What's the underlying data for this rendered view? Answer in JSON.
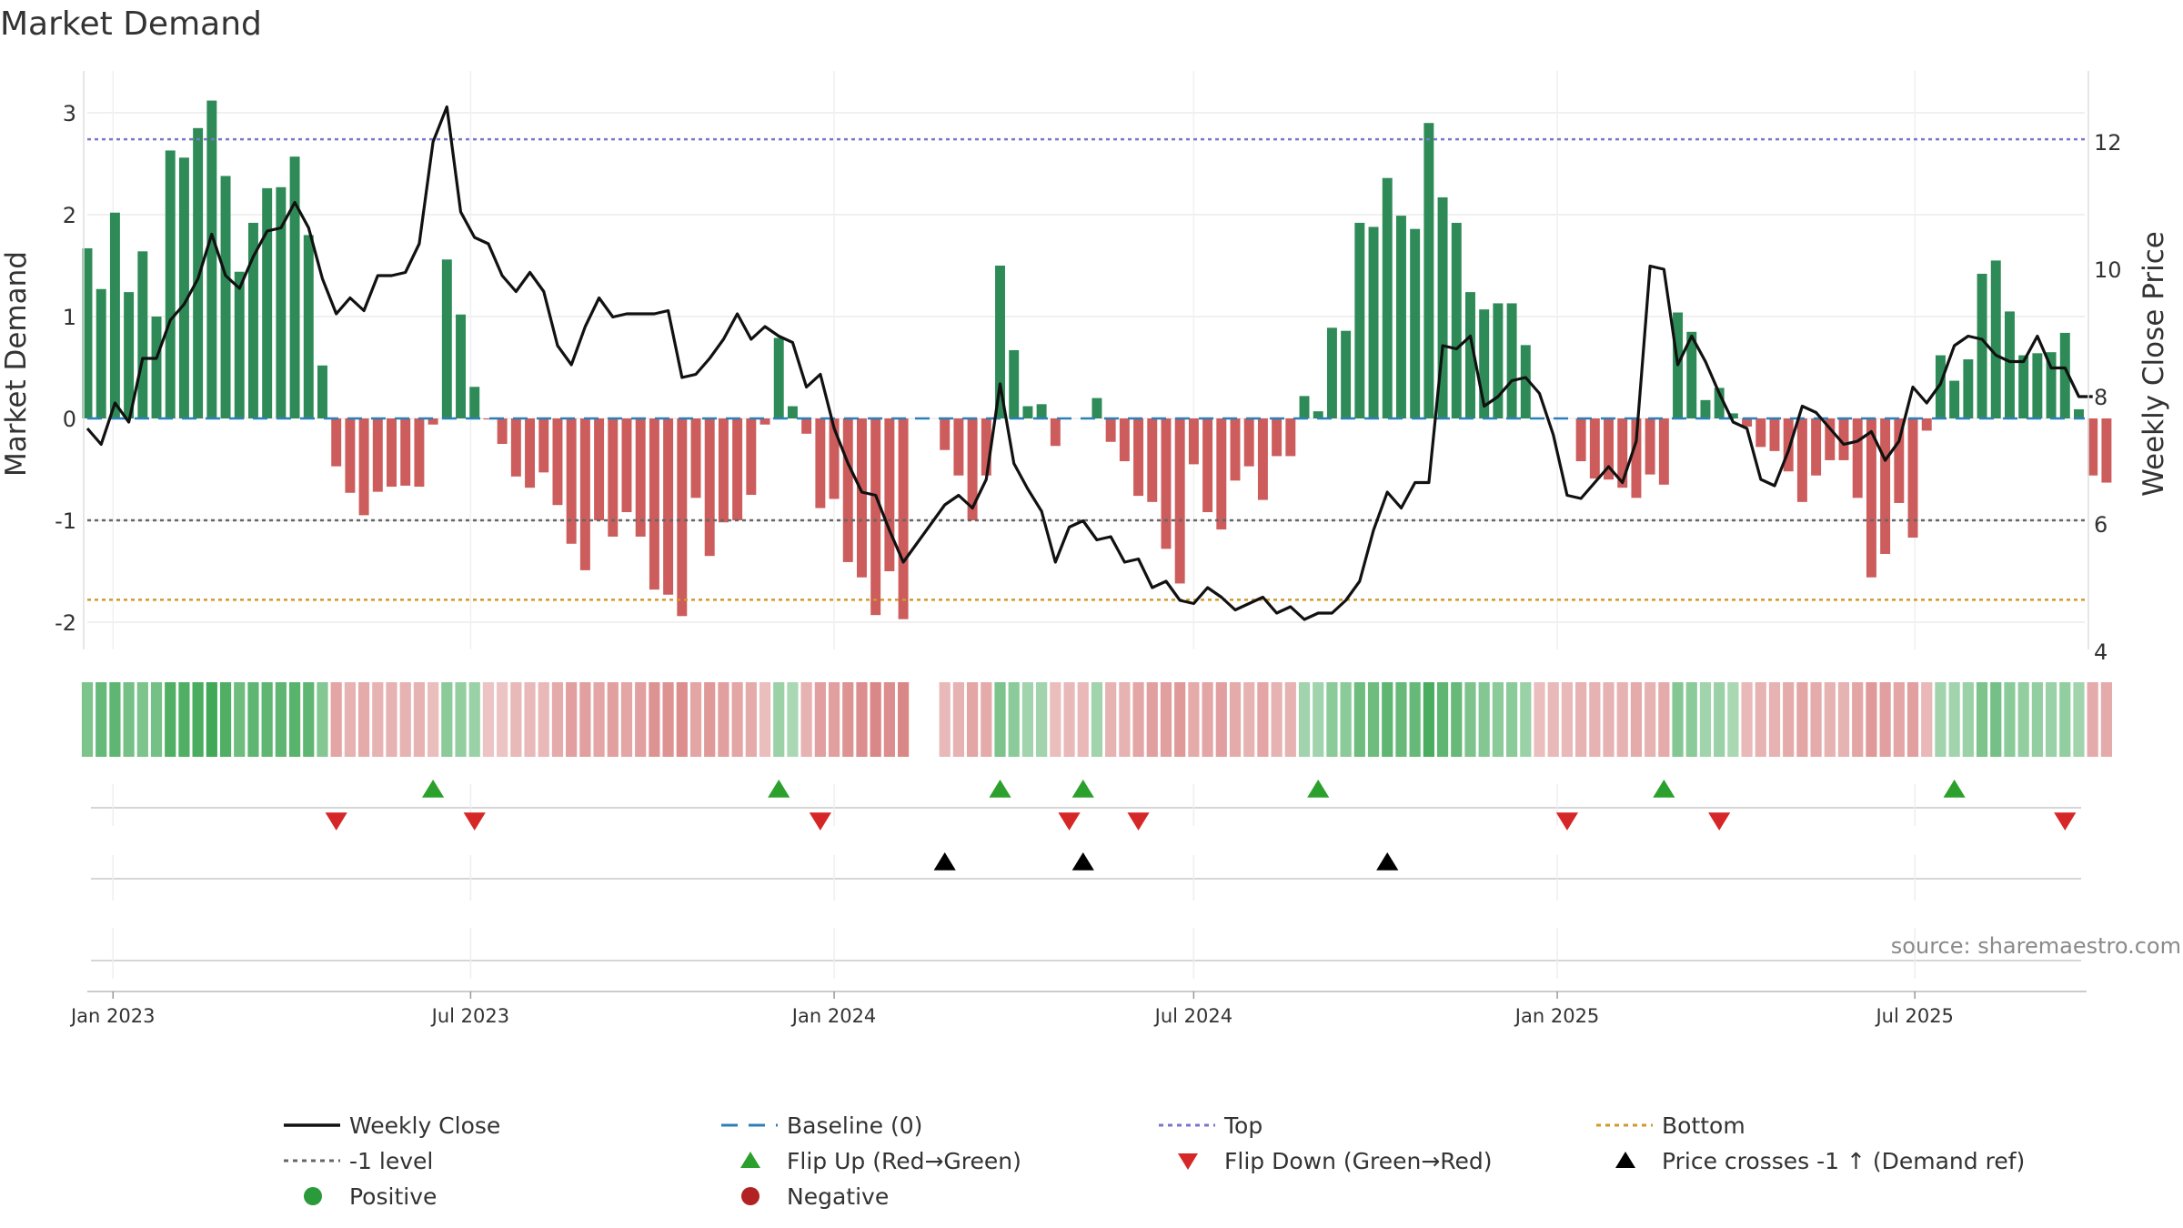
{
  "chart_data": {
    "type": "bar",
    "title": "Market Demand",
    "ylabel_left": "Market Demand",
    "ylabel_right": "Weekly Close Price",
    "ylim_left": [
      -2.25,
      3.2
    ],
    "ylim_right": [
      4,
      13.3
    ],
    "yticks_left": [
      -2,
      -1,
      0,
      1,
      2,
      3
    ],
    "yticks_right": [
      4,
      6,
      8,
      10,
      12
    ],
    "x_start": "2022-12-19",
    "x_end": "2025-09-25",
    "x_ticks": [
      {
        "date": "2023-01-01",
        "label": "Jan 2023"
      },
      {
        "date": "2023-07-01",
        "label": "Jul 2023"
      },
      {
        "date": "2024-01-01",
        "label": "Jan 2024"
      },
      {
        "date": "2024-07-01",
        "label": "Jul 2024"
      },
      {
        "date": "2025-01-01",
        "label": "Jan 2025"
      },
      {
        "date": "2025-07-01",
        "label": "Jul 2025"
      }
    ],
    "levels": {
      "top": 2.74,
      "bottom": -1.78,
      "minus_one": -1,
      "baseline": 0
    },
    "weeks_start": "2022-12-19",
    "demand": [
      1.67,
      1.27,
      2.02,
      1.24,
      1.64,
      1.0,
      2.63,
      2.56,
      2.85,
      3.12,
      2.38,
      1.44,
      1.92,
      2.26,
      2.27,
      2.57,
      1.8,
      0.52,
      -0.47,
      -0.73,
      -0.95,
      -0.72,
      -0.67,
      -0.66,
      -0.67,
      -0.06,
      1.56,
      1.02,
      0.31,
      -0.01,
      -0.25,
      -0.57,
      -0.68,
      -0.53,
      -0.85,
      -1.23,
      -1.49,
      -1.0,
      -1.16,
      -0.92,
      -1.16,
      -1.68,
      -1.73,
      -1.94,
      -0.78,
      -1.35,
      -1.02,
      -1.0,
      -0.75,
      -0.06,
      0.79,
      0.12,
      -0.15,
      -0.88,
      -0.79,
      -1.41,
      -1.56,
      -1.93,
      -1.5,
      -1.97,
      0,
      0,
      -0.31,
      -0.56,
      -1.0,
      -0.56,
      1.5,
      0.67,
      0.12,
      0.14,
      -0.27,
      0,
      0,
      0.2,
      -0.23,
      -0.42,
      -0.76,
      -0.82,
      -1.28,
      -1.62,
      -0.45,
      -0.92,
      -1.09,
      -0.61,
      -0.47,
      -0.8,
      -0.37,
      -0.37,
      0.22,
      0.07,
      0.89,
      0.86,
      1.92,
      1.88,
      2.36,
      1.99,
      1.86,
      2.9,
      2.17,
      1.92,
      1.24,
      1.07,
      1.13,
      1.13,
      0.72,
      0,
      0,
      0,
      -0.42,
      -0.59,
      -0.6,
      -0.68,
      -0.78,
      -0.55,
      -0.65,
      1.04,
      0.85,
      0.18,
      0.3,
      0.05,
      -0.08,
      -0.28,
      -0.32,
      -0.52,
      -0.82,
      -0.56,
      -0.41,
      -0.41,
      -0.78,
      -1.56,
      -1.33,
      -0.83,
      -1.17,
      -0.12,
      0.62,
      0.37,
      0.58,
      1.42,
      1.55,
      1.05,
      0.62,
      0.64,
      0.65,
      0.84,
      0.09,
      -0.56,
      -0.63
    ],
    "heat_strip": [
      0.55,
      0.7,
      0.75,
      0.6,
      0.55,
      0.6,
      0.85,
      0.85,
      0.9,
      0.95,
      0.85,
      0.65,
      0.75,
      0.75,
      0.75,
      0.8,
      0.75,
      0.5,
      0.4,
      0.3,
      0.35,
      0.3,
      0.3,
      0.3,
      0.3,
      0.2,
      0.45,
      0.4,
      0.35,
      0.15,
      0.15,
      0.25,
      0.25,
      0.25,
      0.35,
      0.45,
      0.45,
      0.4,
      0.45,
      0.4,
      0.45,
      0.55,
      0.55,
      0.6,
      0.4,
      0.5,
      0.45,
      0.4,
      0.35,
      0.2,
      0.35,
      0.25,
      0.3,
      0.45,
      0.45,
      0.55,
      0.6,
      0.65,
      0.6,
      0.65,
      0,
      0,
      0.25,
      0.3,
      0.4,
      0.35,
      0.55,
      0.45,
      0.3,
      0.3,
      0.2,
      0.25,
      0.25,
      0.3,
      0.3,
      0.3,
      0.4,
      0.45,
      0.45,
      0.5,
      0.35,
      0.4,
      0.45,
      0.35,
      0.3,
      0.4,
      0.3,
      0.3,
      0.3,
      0.3,
      0.45,
      0.45,
      0.65,
      0.65,
      0.75,
      0.7,
      0.7,
      0.9,
      0.75,
      0.7,
      0.55,
      0.5,
      0.45,
      0.45,
      0.35,
      0.2,
      0.25,
      0.25,
      0.3,
      0.3,
      0.3,
      0.3,
      0.35,
      0.3,
      0.35,
      0.5,
      0.45,
      0.3,
      0.35,
      0.25,
      0.25,
      0.3,
      0.3,
      0.35,
      0.4,
      0.35,
      0.3,
      0.3,
      0.4,
      0.5,
      0.45,
      0.4,
      0.45,
      0.25,
      0.3,
      0.3,
      0.35,
      0.55,
      0.6,
      0.45,
      0.4,
      0.4,
      0.35,
      0.4,
      0.3,
      0.35,
      0.35
    ],
    "close": [
      7.5,
      7.25,
      7.9,
      7.6,
      8.6,
      8.6,
      9.2,
      9.45,
      9.85,
      10.55,
      9.9,
      9.7,
      10.2,
      10.6,
      10.65,
      11.05,
      10.65,
      9.85,
      9.3,
      9.55,
      9.35,
      9.9,
      9.9,
      9.95,
      10.4,
      12.0,
      12.55,
      10.9,
      10.5,
      10.4,
      9.9,
      9.65,
      9.95,
      9.65,
      8.8,
      8.5,
      9.1,
      9.55,
      9.25,
      9.3,
      9.3,
      9.3,
      9.35,
      8.3,
      8.35,
      8.6,
      8.9,
      9.3,
      8.9,
      9.1,
      8.95,
      8.85,
      8.15,
      8.35,
      7.5,
      6.95,
      6.5,
      6.45,
      5.9,
      5.4,
      5.7,
      6.0,
      6.3,
      6.45,
      6.25,
      6.7,
      8.2,
      6.95,
      6.55,
      6.2,
      5.4,
      5.95,
      6.05,
      5.75,
      5.8,
      5.4,
      5.45,
      5.0,
      5.1,
      4.8,
      4.75,
      5.0,
      4.85,
      4.65,
      4.75,
      4.85,
      4.6,
      4.7,
      4.5,
      4.6,
      4.6,
      4.8,
      5.1,
      5.9,
      6.5,
      6.25,
      6.65,
      6.65,
      8.8,
      8.75,
      8.95,
      7.85,
      8.0,
      8.25,
      8.3,
      8.05,
      7.4,
      6.45,
      6.4,
      6.65,
      6.9,
      6.65,
      7.3,
      10.05,
      10.0,
      8.5,
      8.95,
      8.55,
      8.05,
      7.6,
      7.5,
      6.7,
      6.6,
      7.15,
      7.85,
      7.75,
      7.5,
      7.25,
      7.3,
      7.45,
      7.0,
      7.3,
      8.15,
      7.9,
      8.2,
      8.8,
      8.95,
      8.9,
      8.65,
      8.55,
      8.55,
      8.95,
      8.45,
      8.45,
      8.0,
      8.0
    ],
    "flip_up_weeks": [
      25,
      50,
      66,
      72,
      89,
      114,
      135
    ],
    "flip_down_weeks": [
      18,
      28,
      53,
      71,
      76,
      107,
      118,
      143
    ],
    "price_cross_weeks": [
      62,
      72,
      94
    ],
    "legend": [
      {
        "label": "Weekly Close",
        "marker": "line",
        "color": "#111111"
      },
      {
        "label": "Baseline (0)",
        "marker": "dash",
        "color": "#2c7fb8"
      },
      {
        "label": "Top",
        "marker": "dot",
        "color": "#7777cc"
      },
      {
        "label": "Bottom",
        "marker": "dot",
        "color": "#d19a2a"
      },
      {
        "label": "-1 level",
        "marker": "dot",
        "color": "#666666"
      },
      {
        "label": "Flip Up (Red→Green)",
        "marker": "triangle-up",
        "color": "#2ca02c"
      },
      {
        "label": "Flip Down (Green→Red)",
        "marker": "triangle-down",
        "color": "#d62728"
      },
      {
        "label": "Price crosses -1 ↑ (Demand ref)",
        "marker": "triangle-up",
        "color": "#000000"
      },
      {
        "label": "Positive",
        "marker": "circle",
        "color": "#2a9a3a"
      },
      {
        "label": "Negative",
        "marker": "circle",
        "color": "#b22222"
      }
    ],
    "source": "source: sharemaestro.com",
    "colors": {
      "positive_bar": "#2e8b57",
      "negative_bar": "#cd5c5c",
      "heat_positive": "#3aa552",
      "heat_negative": "#cd5c5c",
      "close_line": "#111111",
      "baseline": "#2c7fb8",
      "top": "#7777cc",
      "bottom": "#d19a2a",
      "minus_one": "#666666",
      "flip_up": "#2ca02c",
      "flip_down": "#d62728",
      "cross": "#000000"
    }
  }
}
